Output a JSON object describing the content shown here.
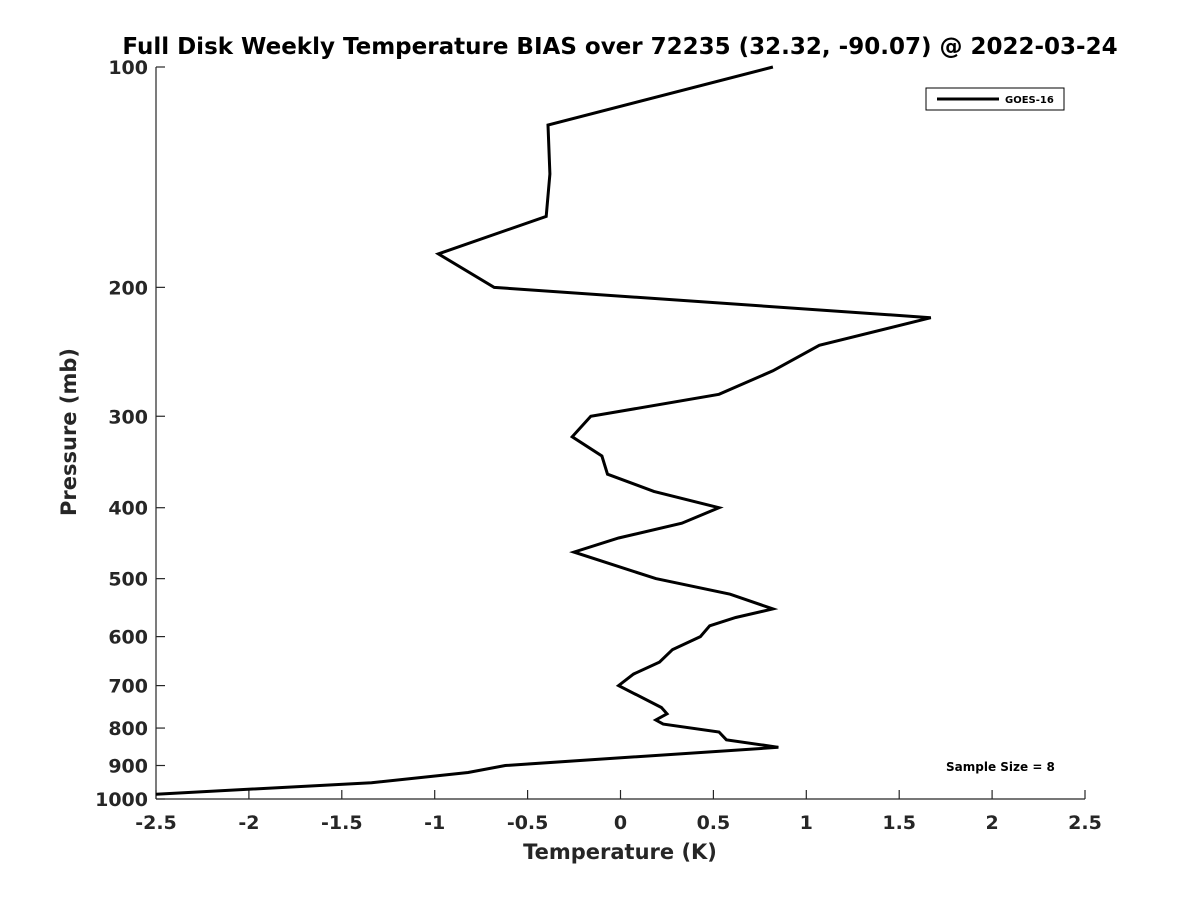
{
  "chart_data": {
    "type": "line",
    "title": "Full Disk Weekly Temperature BIAS over 72235 (32.32, -90.07) @ 2022-03-24",
    "xlabel": "Temperature (K)",
    "ylabel": "Pressure (mb)",
    "xlim": [
      -2.5,
      2.5
    ],
    "ylim": [
      1000,
      100
    ],
    "yscale": "log",
    "xticks": [
      "-2.5",
      "-2",
      "-1.5",
      "-1",
      "-0.5",
      "0",
      "0.5",
      "1",
      "1.5",
      "2",
      "2.5"
    ],
    "yticks": [
      "100",
      "200",
      "300",
      "400",
      "500",
      "600",
      "700",
      "800",
      "900",
      "1000"
    ],
    "grid": false,
    "legend_position": "top-right",
    "annotation": "Sample Size = 8",
    "series": [
      {
        "name": "GOES-16",
        "color": "#000000",
        "points": [
          [
            0.82,
            100
          ],
          [
            -0.39,
            120
          ],
          [
            -0.38,
            140
          ],
          [
            -0.4,
            160
          ],
          [
            -0.98,
            180
          ],
          [
            -0.68,
            200
          ],
          [
            1.67,
            220
          ],
          [
            1.07,
            240
          ],
          [
            0.82,
            260
          ],
          [
            0.53,
            280
          ],
          [
            -0.16,
            300
          ],
          [
            -0.26,
            320
          ],
          [
            -0.1,
            340
          ],
          [
            -0.07,
            360
          ],
          [
            0.18,
            380
          ],
          [
            0.53,
            400
          ],
          [
            0.33,
            420
          ],
          [
            -0.01,
            440
          ],
          [
            -0.25,
            460
          ],
          [
            0.19,
            500
          ],
          [
            0.59,
            525
          ],
          [
            0.82,
            550
          ],
          [
            0.62,
            565
          ],
          [
            0.48,
            580
          ],
          [
            0.43,
            600
          ],
          [
            0.28,
            625
          ],
          [
            0.21,
            650
          ],
          [
            0.07,
            675
          ],
          [
            -0.01,
            700
          ],
          [
            0.22,
            750
          ],
          [
            0.25,
            765
          ],
          [
            0.19,
            780
          ],
          [
            0.23,
            790
          ],
          [
            0.53,
            810
          ],
          [
            0.57,
            830
          ],
          [
            0.85,
            850
          ],
          [
            -0.62,
            900
          ],
          [
            -0.82,
            920
          ],
          [
            -1.34,
            950
          ],
          [
            -2.5,
            985
          ]
        ]
      }
    ]
  }
}
